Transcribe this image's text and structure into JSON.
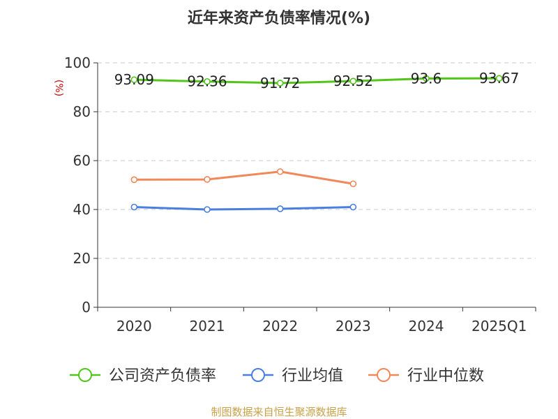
{
  "chart_data": {
    "type": "line",
    "title": "近年来资产负债率情况(%)",
    "ylabel": "(%)",
    "xlabel": "",
    "categories": [
      "2020",
      "2021",
      "2022",
      "2023",
      "2024",
      "2025Q1"
    ],
    "yticks": [
      0,
      20,
      40,
      60,
      80,
      100
    ],
    "ylim": [
      0,
      100
    ],
    "grid": true,
    "legend_position": "bottom",
    "series": [
      {
        "name": "公司资产负债率",
        "color": "#52c41a",
        "values": [
          93.09,
          92.36,
          91.72,
          92.52,
          93.6,
          93.67
        ],
        "labels": [
          "93.09",
          "92.36",
          "91.72",
          "92.52",
          "93.6",
          "93.67"
        ]
      },
      {
        "name": "行业均值",
        "color": "#4a7fe0",
        "values": [
          41.0,
          40.0,
          40.3,
          41.0,
          null,
          null
        ]
      },
      {
        "name": "行业中位数",
        "color": "#f0885a",
        "values": [
          52.2,
          52.3,
          55.5,
          50.5,
          null,
          null
        ]
      }
    ],
    "source": "制图数据来自恒生聚源数据库"
  }
}
